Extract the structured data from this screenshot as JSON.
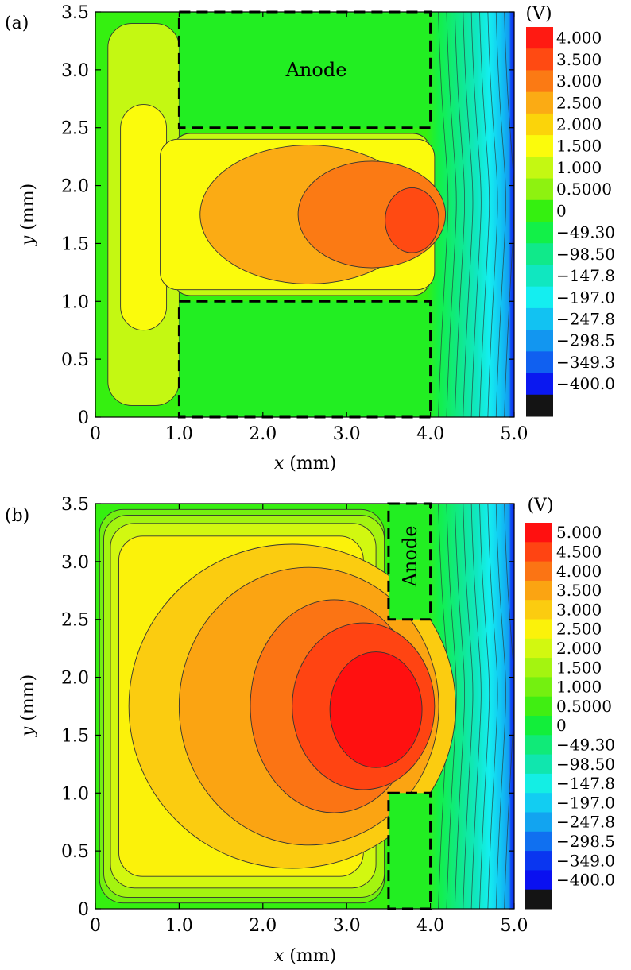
{
  "chart_data": [
    {
      "type": "contour",
      "panel_label": "(a)",
      "xlabel": "x (mm)",
      "ylabel": "y (mm)",
      "xlim": [
        0,
        5.0
      ],
      "ylim": [
        0,
        3.5
      ],
      "x_ticks": [
        "0",
        "1.0",
        "2.0",
        "3.0",
        "4.0",
        "5.0"
      ],
      "y_ticks": [
        "0",
        "0.5",
        "1.0",
        "1.5",
        "2.0",
        "2.5",
        "3.0",
        "3.5"
      ],
      "annotation": "Anode",
      "anode_regions": [
        {
          "x": [
            1.0,
            4.0
          ],
          "y": [
            2.5,
            3.5
          ]
        },
        {
          "x": [
            1.0,
            4.0
          ],
          "y": [
            0.0,
            1.0
          ]
        }
      ],
      "colorbar_unit": "(V)",
      "colorbar_levels": [
        "4.000",
        "3.500",
        "3.000",
        "2.500",
        "2.000",
        "1.500",
        "1.000",
        "0.5000",
        "0",
        "−49.30",
        "−98.50",
        "−147.8",
        "−197.0",
        "−247.8",
        "−298.5",
        "−349.3",
        "−400.0"
      ],
      "colorbar_colors": [
        "#ff1a12",
        "#ff4a12",
        "#fb7a14",
        "#fbab14",
        "#fbd40a",
        "#fbfb0c",
        "#c4f812",
        "#8ef210",
        "#35f010",
        "#12f048",
        "#10e98a",
        "#10e7c0",
        "#14eef0",
        "#12c2f2",
        "#1296f0",
        "#1060f0",
        "#0a18f0",
        "#141414"
      ],
      "max_potential": 4.0
    },
    {
      "type": "contour",
      "panel_label": "(b)",
      "xlabel": "x (mm)",
      "ylabel": "y (mm)",
      "xlim": [
        0,
        5.0
      ],
      "ylim": [
        0,
        3.5
      ],
      "x_ticks": [
        "0",
        "1.0",
        "2.0",
        "3.0",
        "4.0",
        "5.0"
      ],
      "y_ticks": [
        "0",
        "0.5",
        "1.0",
        "1.5",
        "2.0",
        "2.5",
        "3.0",
        "3.5"
      ],
      "annotation": "Anode",
      "anode_regions": [
        {
          "x": [
            3.5,
            4.0
          ],
          "y": [
            2.5,
            3.5
          ]
        },
        {
          "x": [
            3.5,
            4.0
          ],
          "y": [
            0.0,
            1.0
          ]
        }
      ],
      "colorbar_unit": "(V)",
      "colorbar_levels": [
        "5.000",
        "4.500",
        "4.000",
        "3.500",
        "3.000",
        "2.500",
        "2.000",
        "1.500",
        "1.000",
        "0.5000",
        "0",
        "−49.30",
        "−98.50",
        "−147.8",
        "−197.0",
        "−247.8",
        "−298.5",
        "−349.0",
        "−400.0"
      ],
      "colorbar_colors": [
        "#ff1010",
        "#ff4412",
        "#fb7414",
        "#fba412",
        "#fbcc10",
        "#fbf20a",
        "#d2f810",
        "#a4f410",
        "#74f010",
        "#40ee12",
        "#12ee3a",
        "#10ea78",
        "#10e6ae",
        "#14eee4",
        "#12cdf2",
        "#12a4f0",
        "#1070f0",
        "#0a36f0",
        "#0a10f0",
        "#141414"
      ],
      "max_potential": 5.0
    }
  ]
}
